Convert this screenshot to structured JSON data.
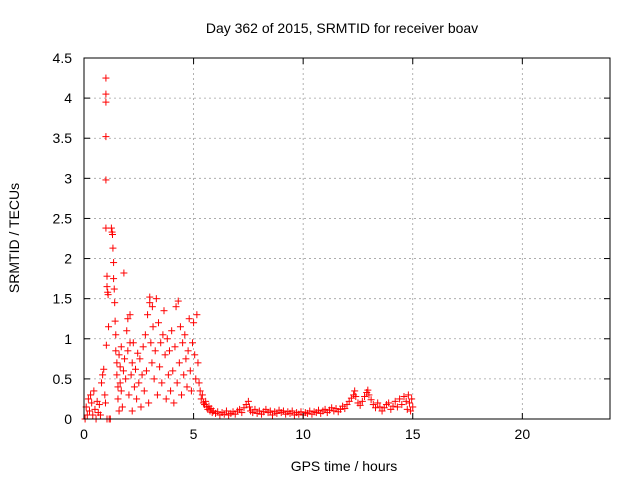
{
  "chart_data": {
    "type": "scatter",
    "title": "Day 362 of 2015, SRMTID for receiver boav",
    "xlabel": "GPS time / hours",
    "ylabel": "SRMTID / TECUs",
    "xlim": [
      0,
      24
    ],
    "ylim": [
      0,
      4.5
    ],
    "x_ticks": [
      0,
      5,
      10,
      15,
      20
    ],
    "x_tick_labels": [
      "0",
      "5",
      "10",
      "15",
      "20"
    ],
    "y_ticks": [
      0,
      0.5,
      1,
      1.5,
      2,
      2.5,
      3,
      3.5,
      4,
      4.5
    ],
    "y_tick_labels": [
      "0",
      "0.5",
      "1",
      "1.5",
      "2",
      "2.5",
      "3",
      "3.5",
      "4",
      "4.5"
    ],
    "grid": true,
    "marker": "plus",
    "color": "#ff0000",
    "series": [
      {
        "name": "SRMTID",
        "points": [
          [
            0.05,
            0.0
          ],
          [
            0.1,
            0.15
          ],
          [
            0.15,
            0.05
          ],
          [
            0.2,
            0.25
          ],
          [
            0.25,
            0.1
          ],
          [
            0.3,
            0.3
          ],
          [
            0.35,
            0.2
          ],
          [
            0.4,
            0.05
          ],
          [
            0.45,
            0.35
          ],
          [
            0.5,
            0.12
          ],
          [
            0.55,
            0.0
          ],
          [
            0.6,
            0.22
          ],
          [
            0.65,
            0.08
          ],
          [
            0.7,
            0.18
          ],
          [
            0.75,
            0.05
          ],
          [
            0.8,
            0.45
          ],
          [
            0.85,
            0.55
          ],
          [
            0.9,
            0.62
          ],
          [
            0.95,
            0.3
          ],
          [
            0.98,
            0.2
          ],
          [
            1.0,
            4.25
          ],
          [
            1.0,
            4.05
          ],
          [
            1.0,
            3.95
          ],
          [
            1.0,
            3.52
          ],
          [
            1.0,
            2.98
          ],
          [
            1.0,
            2.38
          ],
          [
            1.05,
            1.78
          ],
          [
            1.05,
            1.65
          ],
          [
            1.08,
            1.58
          ],
          [
            1.1,
            1.55
          ],
          [
            1.02,
            0.92
          ],
          [
            1.12,
            1.15
          ],
          [
            1.05,
            0.0
          ],
          [
            1.15,
            0.0
          ],
          [
            1.2,
            0.0
          ],
          [
            1.25,
            2.38
          ],
          [
            1.28,
            2.33
          ],
          [
            1.3,
            2.3
          ],
          [
            1.32,
            2.13
          ],
          [
            1.35,
            1.95
          ],
          [
            1.35,
            1.75
          ],
          [
            1.38,
            1.62
          ],
          [
            1.4,
            1.45
          ],
          [
            1.42,
            1.22
          ],
          [
            1.45,
            1.05
          ],
          [
            1.45,
            0.85
          ],
          [
            1.5,
            0.7
          ],
          [
            1.5,
            0.55
          ],
          [
            1.55,
            0.4
          ],
          [
            1.55,
            0.25
          ],
          [
            1.6,
            0.1
          ],
          [
            1.6,
            0.8
          ],
          [
            1.65,
            0.65
          ],
          [
            1.65,
            0.45
          ],
          [
            1.7,
            0.9
          ],
          [
            1.7,
            0.35
          ],
          [
            1.75,
            0.15
          ],
          [
            1.8,
            0.6
          ],
          [
            1.82,
            1.82
          ],
          [
            1.85,
            0.75
          ],
          [
            1.9,
            0.5
          ],
          [
            1.95,
            1.1
          ],
          [
            2.0,
            1.25
          ],
          [
            2.0,
            0.85
          ],
          [
            2.05,
            0.3
          ],
          [
            2.1,
            1.3
          ],
          [
            2.1,
            0.95
          ],
          [
            2.15,
            0.55
          ],
          [
            2.2,
            0.7
          ],
          [
            2.2,
            0.1
          ],
          [
            2.25,
            0.95
          ],
          [
            2.3,
            0.4
          ],
          [
            2.35,
            0.62
          ],
          [
            2.4,
            0.25
          ],
          [
            2.45,
            0.82
          ],
          [
            2.5,
            0.45
          ],
          [
            2.55,
            0.75
          ],
          [
            2.6,
            0.15
          ],
          [
            2.65,
            0.55
          ],
          [
            2.7,
            0.9
          ],
          [
            2.75,
            0.35
          ],
          [
            2.8,
            1.05
          ],
          [
            2.85,
            0.6
          ],
          [
            2.9,
            1.3
          ],
          [
            2.95,
            0.2
          ],
          [
            3.0,
            1.52
          ],
          [
            3.0,
            1.45
          ],
          [
            3.05,
            0.95
          ],
          [
            3.1,
            0.7
          ],
          [
            3.12,
            1.4
          ],
          [
            3.15,
            1.15
          ],
          [
            3.2,
            0.5
          ],
          [
            3.25,
            0.85
          ],
          [
            3.3,
            1.5
          ],
          [
            3.35,
            0.3
          ],
          [
            3.4,
            1.2
          ],
          [
            3.45,
            0.65
          ],
          [
            3.5,
            0.95
          ],
          [
            3.55,
            0.45
          ],
          [
            3.6,
            1.05
          ],
          [
            3.65,
            1.35
          ],
          [
            3.7,
            0.8
          ],
          [
            3.75,
            0.25
          ],
          [
            3.8,
            1.0
          ],
          [
            3.85,
            0.55
          ],
          [
            3.9,
            0.85
          ],
          [
            3.95,
            0.35
          ],
          [
            4.0,
            1.1
          ],
          [
            4.05,
            0.6
          ],
          [
            4.1,
            0.2
          ],
          [
            4.15,
            0.9
          ],
          [
            4.2,
            1.4
          ],
          [
            4.25,
            0.45
          ],
          [
            4.3,
            1.47
          ],
          [
            4.35,
            0.7
          ],
          [
            4.4,
            1.15
          ],
          [
            4.45,
            0.3
          ],
          [
            4.5,
            0.95
          ],
          [
            4.55,
            0.55
          ],
          [
            4.6,
            1.05
          ],
          [
            4.65,
            0.75
          ],
          [
            4.7,
            0.4
          ],
          [
            4.75,
            0.85
          ],
          [
            4.8,
            1.25
          ],
          [
            4.85,
            0.6
          ],
          [
            4.9,
            0.35
          ],
          [
            4.95,
            0.95
          ],
          [
            5.0,
            1.2
          ],
          [
            5.05,
            0.8
          ],
          [
            5.1,
            0.5
          ],
          [
            5.15,
            1.3
          ],
          [
            5.2,
            0.7
          ],
          [
            5.25,
            0.45
          ],
          [
            5.3,
            0.35
          ],
          [
            5.35,
            0.25
          ],
          [
            5.4,
            0.3
          ],
          [
            5.45,
            0.2
          ],
          [
            5.5,
            0.18
          ],
          [
            5.55,
            0.22
          ],
          [
            5.6,
            0.15
          ],
          [
            5.65,
            0.12
          ],
          [
            5.7,
            0.16
          ],
          [
            5.75,
            0.1
          ],
          [
            5.8,
            0.13
          ],
          [
            5.85,
            0.08
          ],
          [
            5.9,
            0.1
          ],
          [
            6.0,
            0.07
          ],
          [
            6.1,
            0.09
          ],
          [
            6.2,
            0.05
          ],
          [
            6.3,
            0.08
          ],
          [
            6.4,
            0.06
          ],
          [
            6.5,
            0.1
          ],
          [
            6.6,
            0.05
          ],
          [
            6.7,
            0.07
          ],
          [
            6.8,
            0.09
          ],
          [
            6.9,
            0.06
          ],
          [
            7.0,
            0.1
          ],
          [
            7.1,
            0.12
          ],
          [
            7.2,
            0.08
          ],
          [
            7.3,
            0.14
          ],
          [
            7.4,
            0.18
          ],
          [
            7.5,
            0.22
          ],
          [
            7.55,
            0.15
          ],
          [
            7.6,
            0.1
          ],
          [
            7.7,
            0.08
          ],
          [
            7.8,
            0.12
          ],
          [
            7.9,
            0.07
          ],
          [
            8.0,
            0.1
          ],
          [
            8.1,
            0.06
          ],
          [
            8.2,
            0.09
          ],
          [
            8.3,
            0.12
          ],
          [
            8.4,
            0.08
          ],
          [
            8.5,
            0.1
          ],
          [
            8.6,
            0.05
          ],
          [
            8.7,
            0.09
          ],
          [
            8.8,
            0.07
          ],
          [
            8.9,
            0.11
          ],
          [
            9.0,
            0.08
          ],
          [
            9.1,
            0.1
          ],
          [
            9.2,
            0.06
          ],
          [
            9.3,
            0.09
          ],
          [
            9.4,
            0.07
          ],
          [
            9.5,
            0.1
          ],
          [
            9.6,
            0.05
          ],
          [
            9.7,
            0.08
          ],
          [
            9.8,
            0.06
          ],
          [
            9.9,
            0.09
          ],
          [
            10.0,
            0.05
          ],
          [
            10.1,
            0.08
          ],
          [
            10.2,
            0.07
          ],
          [
            10.3,
            0.1
          ],
          [
            10.4,
            0.06
          ],
          [
            10.5,
            0.09
          ],
          [
            10.6,
            0.08
          ],
          [
            10.7,
            0.11
          ],
          [
            10.8,
            0.07
          ],
          [
            10.9,
            0.1
          ],
          [
            11.0,
            0.12
          ],
          [
            11.1,
            0.08
          ],
          [
            11.2,
            0.11
          ],
          [
            11.3,
            0.14
          ],
          [
            11.4,
            0.1
          ],
          [
            11.5,
            0.13
          ],
          [
            11.6,
            0.09
          ],
          [
            11.7,
            0.12
          ],
          [
            11.8,
            0.16
          ],
          [
            11.9,
            0.13
          ],
          [
            12.0,
            0.18
          ],
          [
            12.1,
            0.22
          ],
          [
            12.2,
            0.26
          ],
          [
            12.3,
            0.3
          ],
          [
            12.35,
            0.35
          ],
          [
            12.4,
            0.28
          ],
          [
            12.5,
            0.2
          ],
          [
            12.6,
            0.17
          ],
          [
            12.7,
            0.22
          ],
          [
            12.8,
            0.28
          ],
          [
            12.9,
            0.33
          ],
          [
            12.95,
            0.36
          ],
          [
            13.0,
            0.3
          ],
          [
            13.1,
            0.24
          ],
          [
            13.2,
            0.18
          ],
          [
            13.3,
            0.14
          ],
          [
            13.4,
            0.2
          ],
          [
            13.5,
            0.15
          ],
          [
            13.6,
            0.1
          ],
          [
            13.7,
            0.14
          ],
          [
            13.8,
            0.18
          ],
          [
            13.9,
            0.2
          ],
          [
            14.0,
            0.12
          ],
          [
            14.1,
            0.16
          ],
          [
            14.2,
            0.22
          ],
          [
            14.3,
            0.15
          ],
          [
            14.4,
            0.25
          ],
          [
            14.5,
            0.18
          ],
          [
            14.6,
            0.28
          ],
          [
            14.7,
            0.22
          ],
          [
            14.75,
            0.12
          ],
          [
            14.8,
            0.3
          ],
          [
            14.85,
            0.2
          ],
          [
            14.9,
            0.1
          ],
          [
            14.95,
            0.25
          ],
          [
            15.0,
            0.15
          ]
        ]
      }
    ]
  }
}
